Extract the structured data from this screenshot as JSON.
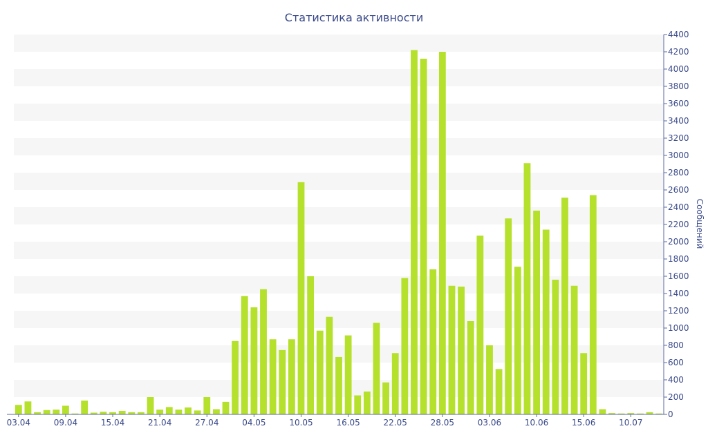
{
  "chart_data": {
    "type": "bar",
    "title": "Статистика активности",
    "xlabel": "",
    "ylabel": "Сообщений",
    "ylim": [
      0,
      4400
    ],
    "ytick_step": 200,
    "grid": "alternating horizontal bands",
    "y_axis_side": "right",
    "bar_color": "#b5e02c",
    "band_color": "#f6f6f6",
    "text_color": "#3a4a8a",
    "axis_color": "#5a6aa0",
    "x_tick_labels": [
      {
        "index": 0,
        "label": "03.04"
      },
      {
        "index": 5,
        "label": "09.04"
      },
      {
        "index": 10,
        "label": "15.04"
      },
      {
        "index": 15,
        "label": "21.04"
      },
      {
        "index": 20,
        "label": "27.04"
      },
      {
        "index": 25,
        "label": "04.05"
      },
      {
        "index": 30,
        "label": "10.05"
      },
      {
        "index": 35,
        "label": "16.05"
      },
      {
        "index": 40,
        "label": "22.05"
      },
      {
        "index": 45,
        "label": "28.05"
      },
      {
        "index": 50,
        "label": "03.06"
      },
      {
        "index": 55,
        "label": "10.06"
      },
      {
        "index": 60,
        "label": "15.06"
      },
      {
        "index": 65,
        "label": "10.07"
      }
    ],
    "values": [
      110,
      150,
      25,
      50,
      55,
      100,
      10,
      160,
      20,
      30,
      25,
      40,
      25,
      25,
      200,
      55,
      85,
      55,
      80,
      45,
      200,
      60,
      145,
      850,
      1370,
      1240,
      1450,
      870,
      745,
      870,
      2690,
      1600,
      970,
      1130,
      665,
      915,
      220,
      265,
      1060,
      370,
      710,
      1580,
      4220,
      4120,
      1680,
      4200,
      1490,
      1480,
      1080,
      2070,
      800,
      525,
      2270,
      1710,
      2910,
      2360,
      2140,
      1560,
      2510,
      1490,
      710,
      2540,
      60,
      15,
      10,
      15,
      10,
      25,
      10
    ]
  }
}
